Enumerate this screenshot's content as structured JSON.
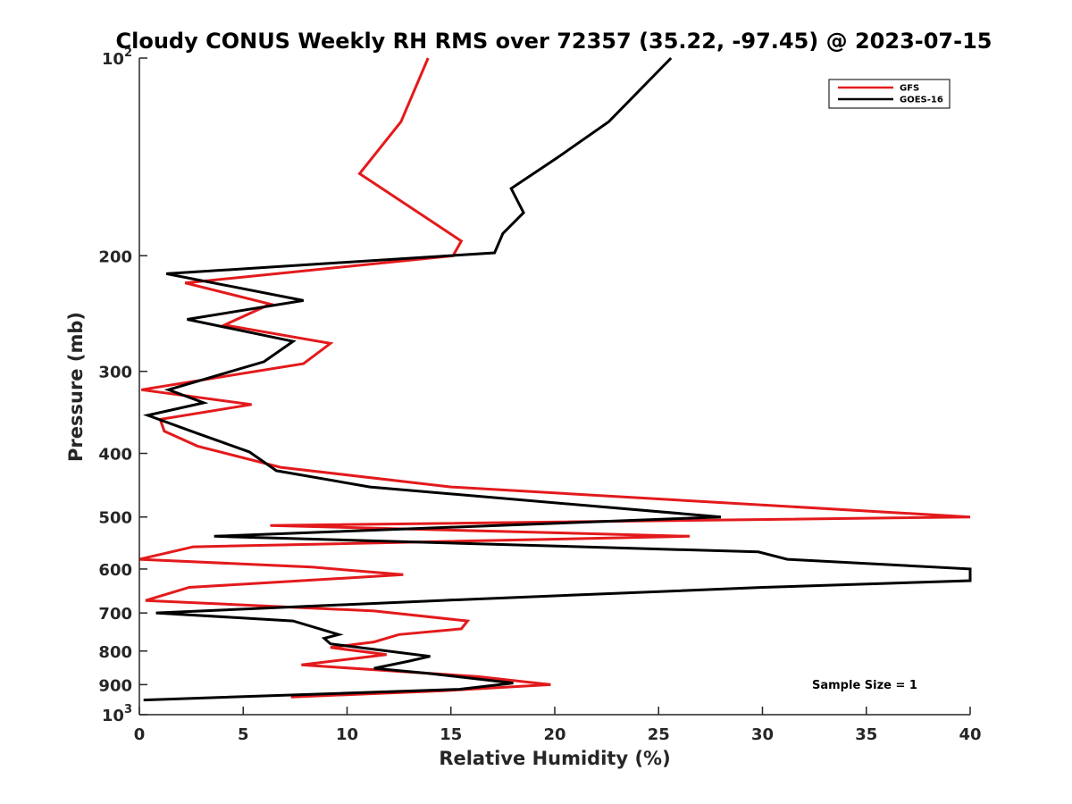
{
  "chart_data": {
    "type": "line",
    "title": "Cloudy CONUS Weekly RH RMS over 72357 (35.22, -97.45) @ 2023-07-15",
    "xlabel": "Relative Humidity (%)",
    "ylabel": "Pressure (mb)",
    "xlim": [
      0,
      40
    ],
    "ylim": [
      100,
      1000
    ],
    "y_scale": "log",
    "y_reversed": true,
    "grid": false,
    "legend_position": "top-right",
    "x_ticks": [
      {
        "value": 0,
        "label": "0"
      },
      {
        "value": 5,
        "label": "5"
      },
      {
        "value": 10,
        "label": "10"
      },
      {
        "value": 15,
        "label": "15"
      },
      {
        "value": 20,
        "label": "20"
      },
      {
        "value": 25,
        "label": "25"
      },
      {
        "value": 30,
        "label": "30"
      },
      {
        "value": 35,
        "label": "35"
      },
      {
        "value": 40,
        "label": "40"
      }
    ],
    "y_ticks": [
      {
        "value": 100,
        "base": "10",
        "exp": "2"
      },
      {
        "value": 200,
        "label": "200"
      },
      {
        "value": 300,
        "label": "300"
      },
      {
        "value": 400,
        "label": "400"
      },
      {
        "value": 500,
        "label": "500"
      },
      {
        "value": 600,
        "label": "600"
      },
      {
        "value": 700,
        "label": "700"
      },
      {
        "value": 800,
        "label": "800"
      },
      {
        "value": 900,
        "label": "900"
      },
      {
        "value": 1000,
        "base": "10",
        "exp": "3"
      }
    ],
    "series": [
      {
        "name": "GFS",
        "color": "#e31a1c",
        "points": [
          [
            13.9,
            100
          ],
          [
            12.6,
            125
          ],
          [
            10.6,
            150
          ],
          [
            13.8,
            175
          ],
          [
            15.5,
            190
          ],
          [
            15.1,
            200
          ],
          [
            2.2,
            220
          ],
          [
            6.3,
            237
          ],
          [
            4.1,
            255
          ],
          [
            9.2,
            272
          ],
          [
            7.9,
            292
          ],
          [
            0.1,
            320
          ],
          [
            5.4,
            337
          ],
          [
            1.0,
            355
          ],
          [
            1.2,
            370
          ],
          [
            2.8,
            390
          ],
          [
            6.8,
            420
          ],
          [
            15.0,
            450
          ],
          [
            40.0,
            500
          ],
          [
            6.3,
            515
          ],
          [
            26.5,
            535
          ],
          [
            2.6,
            555
          ],
          [
            0.0,
            580
          ],
          [
            8.3,
            596
          ],
          [
            12.7,
            612
          ],
          [
            2.4,
            640
          ],
          [
            0.3,
            670
          ],
          [
            11.3,
            695
          ],
          [
            15.8,
            720
          ],
          [
            15.5,
            740
          ],
          [
            12.5,
            755
          ],
          [
            11.3,
            775
          ],
          [
            9.2,
            790
          ],
          [
            11.9,
            810
          ],
          [
            7.8,
            840
          ],
          [
            16.3,
            875
          ],
          [
            19.8,
            900
          ],
          [
            14.5,
            920
          ],
          [
            7.3,
            940
          ]
        ]
      },
      {
        "name": "GOES-16",
        "color": "#000000",
        "points": [
          [
            25.6,
            100
          ],
          [
            22.6,
            125
          ],
          [
            20.1,
            142
          ],
          [
            17.9,
            158
          ],
          [
            18.5,
            172
          ],
          [
            17.5,
            185
          ],
          [
            17.1,
            198
          ],
          [
            1.3,
            213
          ],
          [
            7.9,
            234
          ],
          [
            2.3,
            250
          ],
          [
            7.4,
            270
          ],
          [
            6.0,
            290
          ],
          [
            1.4,
            320
          ],
          [
            3.1,
            335
          ],
          [
            0.4,
            350
          ],
          [
            2.8,
            373
          ],
          [
            5.3,
            398
          ],
          [
            6.6,
            425
          ],
          [
            11.1,
            450
          ],
          [
            28.0,
            500
          ],
          [
            3.6,
            535
          ],
          [
            29.8,
            565
          ],
          [
            31.2,
            580
          ],
          [
            40.0,
            600
          ],
          [
            40.0,
            625
          ],
          [
            30.0,
            640
          ],
          [
            14.5,
            670
          ],
          [
            0.8,
            700
          ],
          [
            7.4,
            720
          ],
          [
            9.6,
            755
          ],
          [
            8.9,
            765
          ],
          [
            9.2,
            780
          ],
          [
            14.0,
            815
          ],
          [
            12.9,
            830
          ],
          [
            11.3,
            850
          ],
          [
            13.9,
            865
          ],
          [
            18.0,
            895
          ],
          [
            15.4,
            915
          ],
          [
            0.2,
            950
          ]
        ]
      }
    ],
    "annotations": [
      {
        "text": "Sample Size = 1"
      }
    ]
  }
}
